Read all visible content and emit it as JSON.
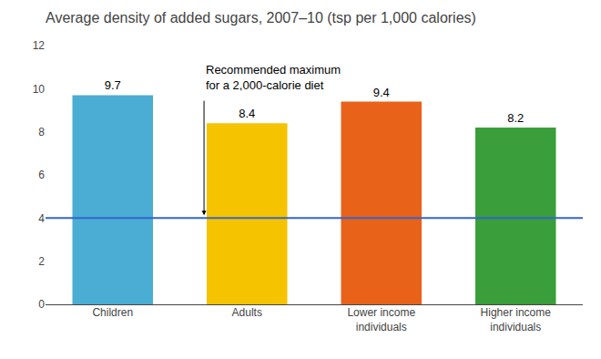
{
  "chart_data": {
    "type": "bar",
    "title": "Average density of added sugars, 2007–10 (tsp per 1,000 calories)",
    "categories": [
      "Children",
      "Adults",
      "Lower income\nindividuals",
      "Higher income\nindividuals"
    ],
    "values": [
      9.7,
      8.4,
      9.4,
      8.2
    ],
    "colors": [
      "#4BADD4",
      "#F5C300",
      "#E8621A",
      "#3A9E3A"
    ],
    "ylim": [
      0,
      12
    ],
    "yticks": [
      0,
      2,
      4,
      6,
      8,
      10,
      12
    ],
    "grid": false,
    "data_labels": true,
    "reference_line": {
      "value": 4,
      "color": "#3366CC"
    },
    "annotation": "Recommended maximum\nfor a 2,000-calorie diet"
  }
}
